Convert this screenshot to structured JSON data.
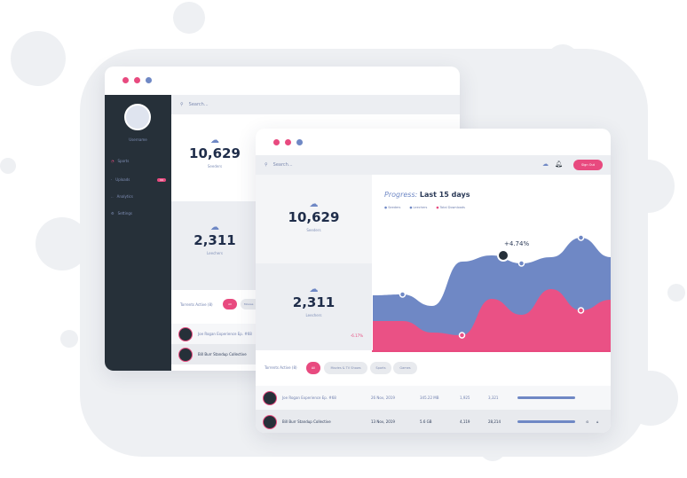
{
  "colors": {
    "accent": "#e84a7f",
    "primary": "#6f88c5",
    "dark": "#263039"
  },
  "back": {
    "user": "Username",
    "nav": [
      {
        "label": "Sports",
        "icon": "gauge-icon"
      },
      {
        "label": "Uploads",
        "badge": "99"
      },
      {
        "label": "Analytics"
      },
      {
        "label": "Settings"
      }
    ],
    "search_placeholder": "Search...",
    "seeders": {
      "value": "10,629",
      "label": "Seeders"
    },
    "leechers": {
      "value": "2,311",
      "label": "Leechers"
    },
    "active": "Torrents Active (8)",
    "pill_all": "All",
    "pill_movies": "Movies",
    "rows": [
      "Joe Rogan Experience Ep. #68",
      "Bill Burr Standup Collective"
    ]
  },
  "front": {
    "search_placeholder": "Search...",
    "signout": "Sign Out",
    "seeders": {
      "value": "10,629",
      "label": "Seeders"
    },
    "leechers": {
      "value": "2,311",
      "label": "Leechers"
    },
    "leechers_change": "-6.17%",
    "chart": {
      "title_prefix": "Progress:",
      "title": "Last 15 days",
      "legend": [
        "Seeders",
        "Leechers",
        "Total Downloads"
      ],
      "annotation": "+4.74%",
      "series_blue": [
        62,
        63,
        50,
        100,
        107,
        98,
        105,
        127,
        105
      ],
      "series_pink": [
        33,
        33,
        20,
        17,
        58,
        40,
        69,
        45,
        57
      ]
    },
    "active": "Torrents Active (8)",
    "filters": [
      "All",
      "Movies & TV Shows",
      "Sports",
      "Games"
    ],
    "rows": [
      {
        "name": "Joe Rogan Experience Ep. #68",
        "date": "26 Nov, 2019",
        "size": "345.22 MB",
        "down": "1,925",
        "up": "3,321",
        "progress": 0.95
      },
      {
        "name": "Bill Burr Standup Collective",
        "date": "13 Nov, 2019",
        "size": "5.6 GB",
        "down": "4,119",
        "up": "28,214",
        "progress": 0.95
      }
    ]
  }
}
